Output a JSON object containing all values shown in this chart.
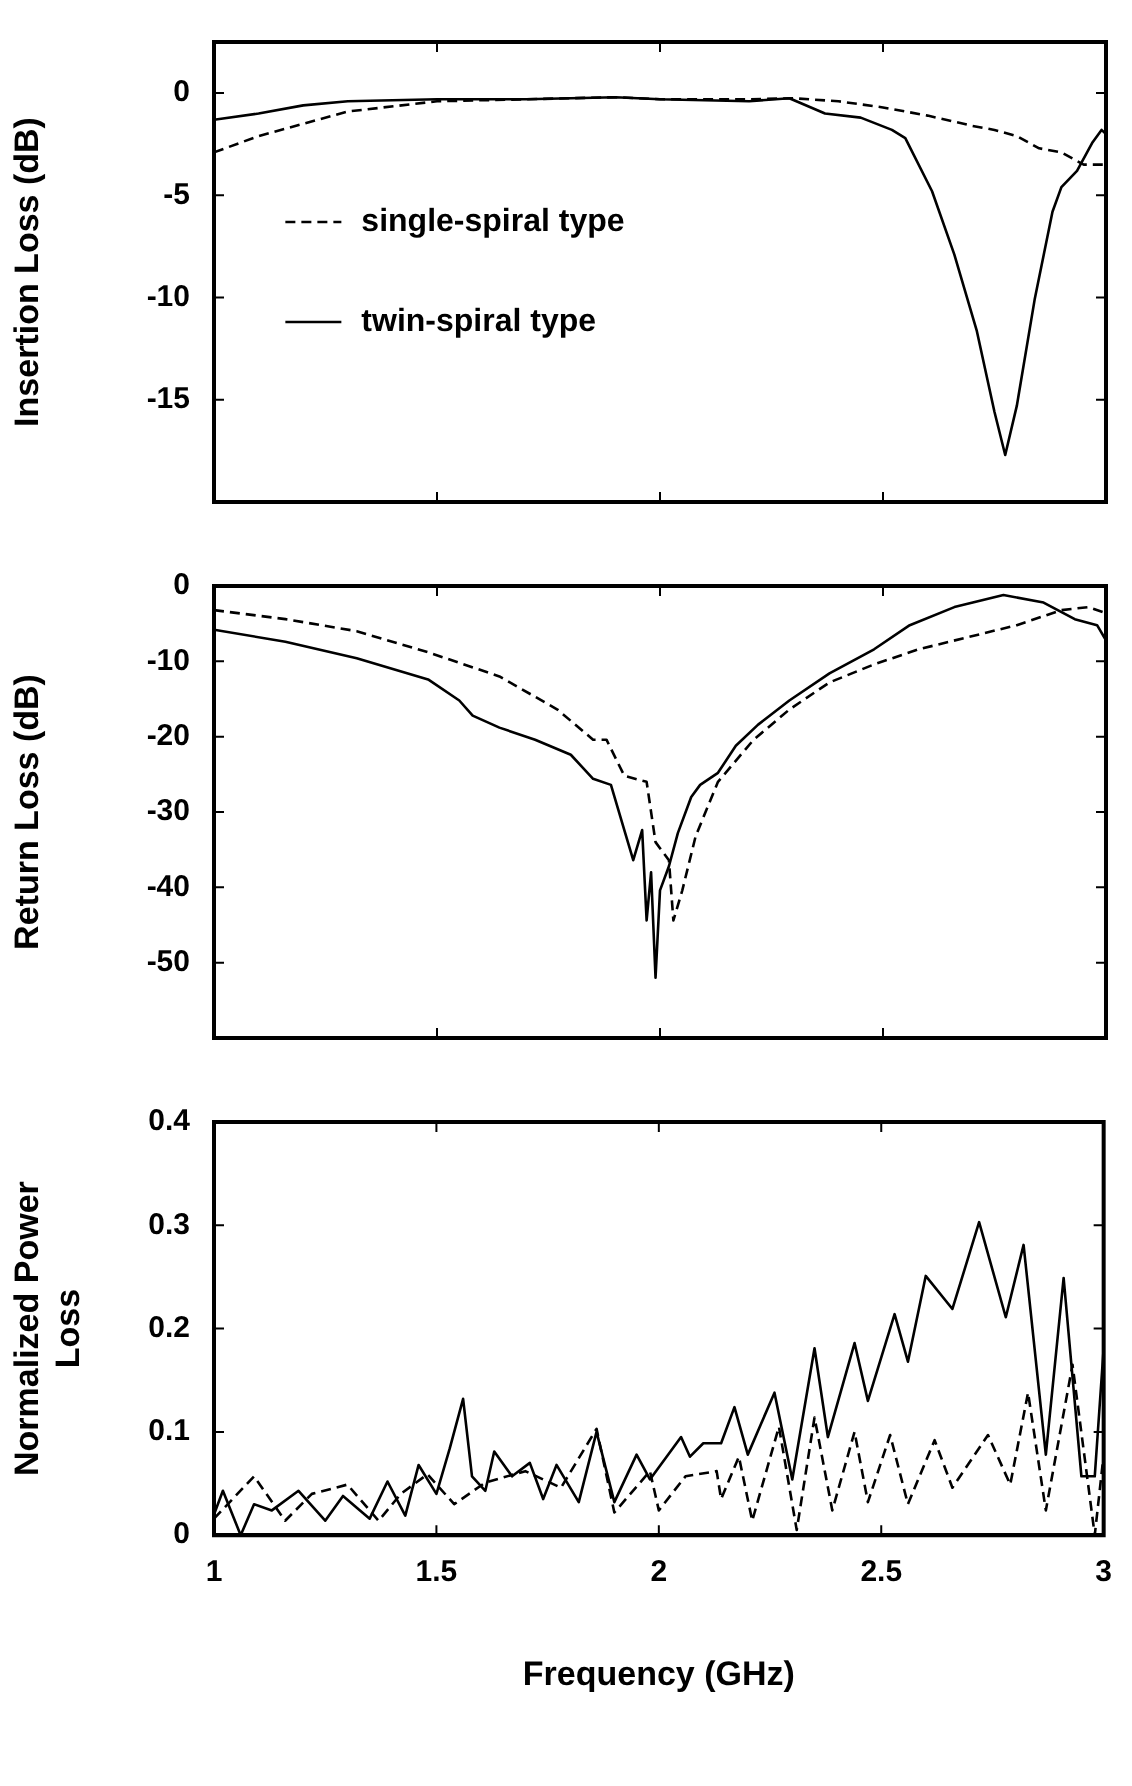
{
  "chart_data": [
    {
      "type": "line",
      "ylabel": "Insertion Loss (dB)",
      "xlim": [
        1,
        3
      ],
      "xticks": [
        1,
        1.5,
        2,
        2.5,
        3
      ],
      "ylim": [
        -20,
        2.5
      ],
      "yticks": [
        0,
        -5,
        -10,
        -15
      ],
      "tick_labels": "y",
      "legend": "left",
      "grid": false,
      "marker": "none",
      "series": [
        {
          "name": "single-spiral type",
          "color": "#000000",
          "line_style": "dashed",
          "x": [
            1,
            1.1,
            1.2,
            1.3,
            1.5,
            1.7,
            1.9,
            2.0,
            2.2,
            2.3,
            2.4,
            2.5,
            2.6,
            2.7,
            2.75,
            2.8,
            2.85,
            2.9,
            2.95,
            3.0
          ],
          "values": [
            -2.9,
            -2.1,
            -1.5,
            -0.9,
            -0.4,
            -0.3,
            -0.2,
            -0.3,
            -0.3,
            -0.25,
            -0.4,
            -0.7,
            -1.1,
            -1.6,
            -1.8,
            -2.1,
            -2.7,
            -2.9,
            -3.5,
            -3.5
          ]
        },
        {
          "name": "twin-spiral type",
          "color": "#000000",
          "line_style": "solid",
          "x": [
            1,
            1.1,
            1.2,
            1.3,
            1.5,
            1.7,
            1.9,
            2.0,
            2.2,
            2.29,
            2.37,
            2.45,
            2.52,
            2.55,
            2.61,
            2.66,
            2.71,
            2.75,
            2.774,
            2.8,
            2.84,
            2.88,
            2.9,
            2.935,
            2.97,
            2.99,
            3.0
          ],
          "values": [
            -1.3,
            -1.0,
            -0.6,
            -0.4,
            -0.3,
            -0.3,
            -0.2,
            -0.3,
            -0.4,
            -0.25,
            -1.0,
            -1.2,
            -1.8,
            -2.2,
            -4.8,
            -7.9,
            -11.6,
            -15.6,
            -17.7,
            -15.3,
            -10.1,
            -5.8,
            -4.6,
            -3.8,
            -2.4,
            -1.8,
            -2.0
          ]
        }
      ]
    },
    {
      "type": "line",
      "ylabel": "Return Loss (dB)",
      "xlim": [
        1,
        3
      ],
      "xticks": [
        1,
        1.5,
        2,
        2.5,
        3
      ],
      "ylim": [
        -60,
        0
      ],
      "yticks": [
        0,
        -10,
        -20,
        -30,
        -40,
        -50
      ],
      "tick_labels": "y",
      "grid": false,
      "marker": "none",
      "series": [
        {
          "color": "#000000",
          "line_style": "dashed",
          "x": [
            1,
            1.16,
            1.32,
            1.48,
            1.64,
            1.77,
            1.85,
            1.88,
            1.92,
            1.97,
            1.99,
            2.02,
            2.03,
            2.05,
            2.08,
            2.13,
            2.21,
            2.29,
            2.38,
            2.48,
            2.58,
            2.69,
            2.8,
            2.9,
            2.96,
            3.0
          ],
          "values": [
            -3.2,
            -4.4,
            -6,
            -8.8,
            -12,
            -16.4,
            -20.4,
            -20.4,
            -25.2,
            -26,
            -34,
            -36.4,
            -44.4,
            -40.4,
            -33.2,
            -26,
            -20.4,
            -16.4,
            -12.8,
            -10.4,
            -8.4,
            -6.8,
            -5.2,
            -3.2,
            -2.8,
            -3.6
          ]
        },
        {
          "color": "#000000",
          "line_style": "solid",
          "x": [
            1,
            1.16,
            1.32,
            1.48,
            1.55,
            1.58,
            1.64,
            1.72,
            1.8,
            1.85,
            1.89,
            1.92,
            1.94,
            1.96,
            1.97,
            1.98,
            1.99,
            2.0,
            2.02,
            2.04,
            2.07,
            2.09,
            2.13,
            2.17,
            2.22,
            2.29,
            2.38,
            2.48,
            2.56,
            2.66,
            2.77,
            2.86,
            2.93,
            2.98,
            3.0
          ],
          "values": [
            -5.8,
            -7.4,
            -9.6,
            -12.4,
            -15.2,
            -17.2,
            -18.8,
            -20.4,
            -22.4,
            -25.6,
            -26.4,
            -32.4,
            -36.4,
            -32.4,
            -44.4,
            -38,
            -52,
            -40.4,
            -37.2,
            -32.8,
            -28,
            -26.4,
            -24.8,
            -21.2,
            -18.4,
            -15.2,
            -11.6,
            -8.4,
            -5.2,
            -2.8,
            -1.2,
            -2.2,
            -4.4,
            -5.2,
            -7.2
          ]
        }
      ]
    },
    {
      "type": "line",
      "ylabel": "Normalized Power Loss",
      "xlabel": "Frequency (GHz)",
      "xlim": [
        1,
        3
      ],
      "xticks": [
        1,
        1.5,
        2,
        2.5,
        3
      ],
      "ylim": [
        0,
        0.4
      ],
      "yticks": [
        0,
        0.1,
        0.2,
        0.3,
        0.4
      ],
      "grid": false,
      "marker": "none",
      "series": [
        {
          "color": "#000000",
          "line_style": "dashed",
          "x": [
            1,
            1.09,
            1.16,
            1.22,
            1.3,
            1.37,
            1.42,
            1.48,
            1.54,
            1.61,
            1.7,
            1.78,
            1.86,
            1.9,
            1.98,
            2.0,
            2.06,
            2.13,
            2.14,
            2.18,
            2.21,
            2.27,
            2.31,
            2.35,
            2.39,
            2.44,
            2.47,
            2.52,
            2.56,
            2.62,
            2.66,
            2.74,
            2.79,
            2.83,
            2.87,
            2.93,
            2.98,
            3.0
          ],
          "values": [
            0.016,
            0.057,
            0.014,
            0.04,
            0.049,
            0.014,
            0.04,
            0.059,
            0.03,
            0.051,
            0.062,
            0.046,
            0.103,
            0.022,
            0.062,
            0.024,
            0.057,
            0.062,
            0.035,
            0.076,
            0.014,
            0.105,
            0.005,
            0.114,
            0.024,
            0.1,
            0.032,
            0.097,
            0.03,
            0.092,
            0.046,
            0.097,
            0.049,
            0.138,
            0.024,
            0.165,
            0,
            0.078
          ]
        },
        {
          "color": "#000000",
          "line_style": "solid",
          "x": [
            1,
            1.02,
            1.06,
            1.09,
            1.13,
            1.19,
            1.25,
            1.29,
            1.35,
            1.39,
            1.43,
            1.46,
            1.5,
            1.53,
            1.56,
            1.58,
            1.61,
            1.63,
            1.67,
            1.71,
            1.74,
            1.77,
            1.82,
            1.86,
            1.9,
            1.95,
            1.98,
            2.05,
            2.07,
            2.1,
            2.14,
            2.17,
            2.2,
            2.26,
            2.3,
            2.35,
            2.38,
            2.44,
            2.47,
            2.53,
            2.56,
            2.6,
            2.66,
            2.72,
            2.78,
            2.82,
            2.87,
            2.91,
            2.95,
            2.98,
            3.0
          ],
          "values": [
            0.02,
            0.043,
            0,
            0.03,
            0.024,
            0.043,
            0.014,
            0.038,
            0.016,
            0.052,
            0.019,
            0.068,
            0.04,
            0.084,
            0.132,
            0.057,
            0.043,
            0.081,
            0.057,
            0.07,
            0.035,
            0.068,
            0.032,
            0.1,
            0.032,
            0.078,
            0.054,
            0.095,
            0.076,
            0.089,
            0.089,
            0.124,
            0.078,
            0.138,
            0.054,
            0.181,
            0.095,
            0.186,
            0.13,
            0.214,
            0.168,
            0.251,
            0.219,
            0.303,
            0.211,
            0.281,
            0.078,
            0.249,
            0.057,
            0.057,
            0.181
          ]
        }
      ]
    }
  ]
}
